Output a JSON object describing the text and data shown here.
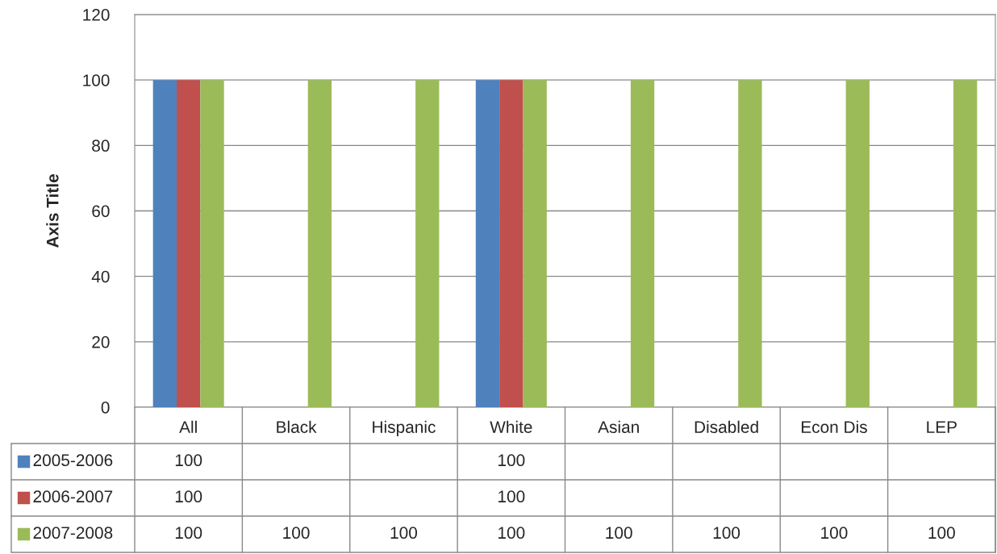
{
  "chart_data": {
    "type": "bar",
    "ylabel": "Axis Title",
    "categories": [
      "All",
      "Black",
      "Hispanic",
      "White",
      "Asian",
      "Disabled",
      "Econ Dis",
      "LEP"
    ],
    "series": [
      {
        "name": "2005-2006",
        "color": "#4f81bd",
        "values": [
          100,
          null,
          null,
          100,
          null,
          null,
          null,
          null
        ]
      },
      {
        "name": "2006-2007",
        "color": "#c0504d",
        "values": [
          100,
          null,
          null,
          100,
          null,
          null,
          null,
          null
        ]
      },
      {
        "name": "2007-2008",
        "color": "#9bbb59",
        "values": [
          100,
          100,
          100,
          100,
          100,
          100,
          100,
          100
        ]
      }
    ],
    "ylim": [
      0,
      120
    ],
    "yticks": [
      0,
      20,
      40,
      60,
      80,
      100,
      120
    ],
    "grid": "y",
    "legend": "bottom",
    "data_labels": true
  }
}
